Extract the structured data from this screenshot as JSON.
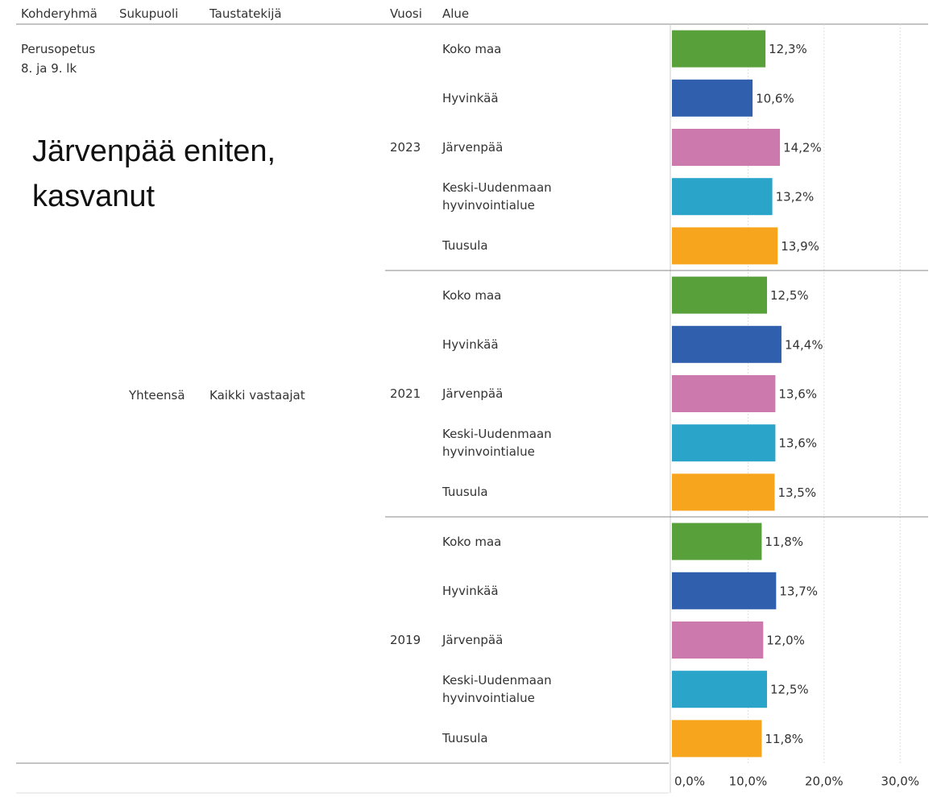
{
  "chart_data": {
    "type": "bar",
    "orientation": "horizontal",
    "headers": [
      "Kohderyhmä",
      "Sukupuoli",
      "Taustatekijä",
      "Vuosi",
      "Alue"
    ],
    "row_labels": {
      "kohderyhma": [
        "Perusopetus",
        "8. ja 9. lk"
      ],
      "sukupuoli": "Yhteensä",
      "taustatekija": "Kaikki vastaajat"
    },
    "annotation": [
      "Järvenpää eniten,",
      "kasvanut"
    ],
    "colors": [
      "#57a03a",
      "#2f5fad",
      "#cc79ad",
      "#2aa5c9",
      "#f8a51e"
    ],
    "groups": [
      {
        "year": "2023",
        "categories": [
          "Koko maa",
          "Hyvinkää",
          "Järvenpää",
          "Keski-Uudenmaan hyvinvointialue",
          "Tuusula"
        ],
        "values": [
          12.3,
          10.6,
          14.2,
          13.2,
          13.9
        ],
        "value_labels": [
          "12,3%",
          "10,6%",
          "14,2%",
          "13,2%",
          "13,9%"
        ]
      },
      {
        "year": "2021",
        "categories": [
          "Koko maa",
          "Hyvinkää",
          "Järvenpää",
          "Keski-Uudenmaan hyvinvointialue",
          "Tuusula"
        ],
        "values": [
          12.5,
          14.4,
          13.6,
          13.6,
          13.5
        ],
        "value_labels": [
          "12,5%",
          "14,4%",
          "13,6%",
          "13,6%",
          "13,5%"
        ]
      },
      {
        "year": "2019",
        "categories": [
          "Koko maa",
          "Hyvinkää",
          "Järvenpää",
          "Keski-Uudenmaan hyvinvointialue",
          "Tuusula"
        ],
        "values": [
          11.8,
          13.7,
          12.0,
          12.5,
          11.8
        ],
        "value_labels": [
          "11,8%",
          "13,7%",
          "12,0%",
          "12,5%",
          "11,8%"
        ]
      }
    ],
    "xlim": [
      0,
      34
    ],
    "xticks": [
      {
        "value": 0,
        "label": "0,0%"
      },
      {
        "value": 10,
        "label": "10,0%"
      },
      {
        "value": 20,
        "label": "20,0%"
      },
      {
        "value": 30,
        "label": "30,0%"
      }
    ],
    "grid": true
  }
}
